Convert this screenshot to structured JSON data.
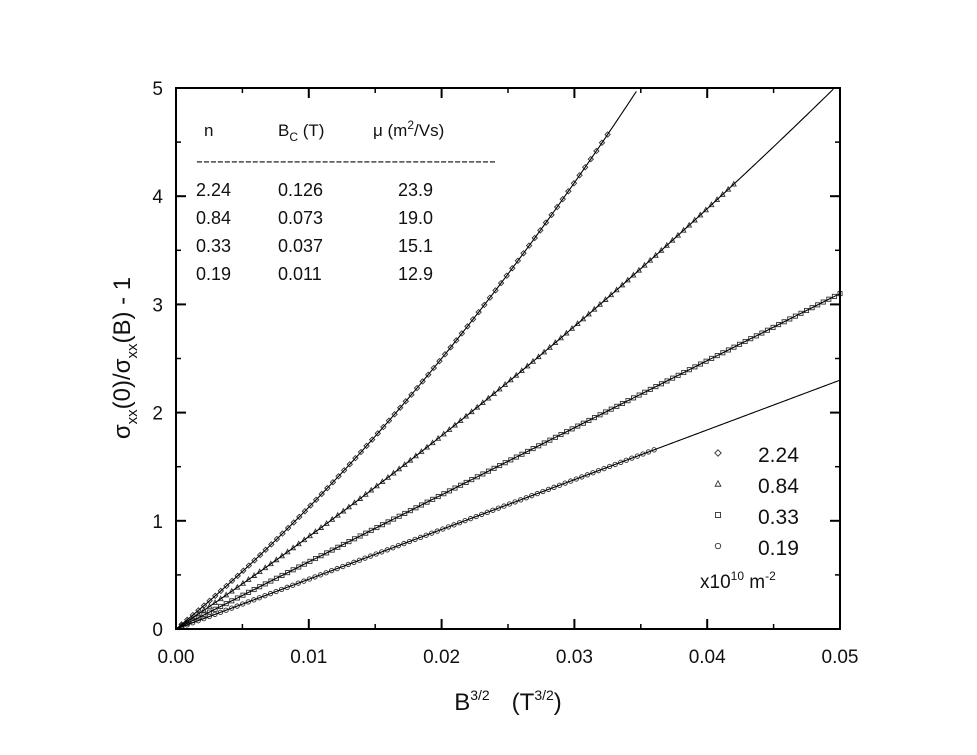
{
  "chart_data": {
    "type": "scatter",
    "xlabel": {
      "base": "B",
      "sup": "3/2",
      "unit_open": "(T",
      "unit_sup": "3/2",
      "unit_close": ")"
    },
    "ylabel": {
      "p1": "σ",
      "s1": "xx",
      "p2": "(0)/σ",
      "s2": "xx",
      "p3": "(B)  - 1"
    },
    "xlim": [
      0,
      0.05
    ],
    "ylim": [
      0,
      5
    ],
    "xticks": [
      "0.00",
      "0.01",
      "0.02",
      "0.03",
      "0.04",
      "0.05"
    ],
    "yticks": [
      "0",
      "1",
      "2",
      "3",
      "4",
      "5"
    ],
    "grid": false,
    "legend_position": "bottom-right",
    "legend_unit": {
      "base": "x10",
      "sup1": "10",
      "mid": " m",
      "sup2": "-2"
    },
    "series": [
      {
        "name": "2.24",
        "marker": "diamond",
        "x_max": 0.0325,
        "fit": {
          "a": 100,
          "b": 1250
        }
      },
      {
        "name": "0.84",
        "marker": "triangle",
        "x_max": 0.042,
        "fit": {
          "a": 81.5,
          "b": 390
        }
      },
      {
        "name": "0.33",
        "marker": "square",
        "x_max": 0.05,
        "fit": {
          "a": 62,
          "b": 0
        }
      },
      {
        "name": "0.19",
        "marker": "circle",
        "x_max": 0.036,
        "fit": {
          "a": 46,
          "b": 0
        }
      }
    ],
    "table": {
      "headers": {
        "n": "n",
        "bc": {
          "base": "B",
          "sub": "C",
          "rest": " (T)"
        },
        "mu": {
          "base": "μ (m",
          "sup": "2",
          "rest": "/Vs)"
        }
      },
      "divider": "-------------------------------------------",
      "rows": [
        [
          "2.24",
          "0.126",
          "23.9"
        ],
        [
          "0.84",
          "0.073",
          "19.0"
        ],
        [
          "0.33",
          "0.037",
          "15.1"
        ],
        [
          "0.19",
          "0.011",
          "12.9"
        ]
      ]
    }
  }
}
